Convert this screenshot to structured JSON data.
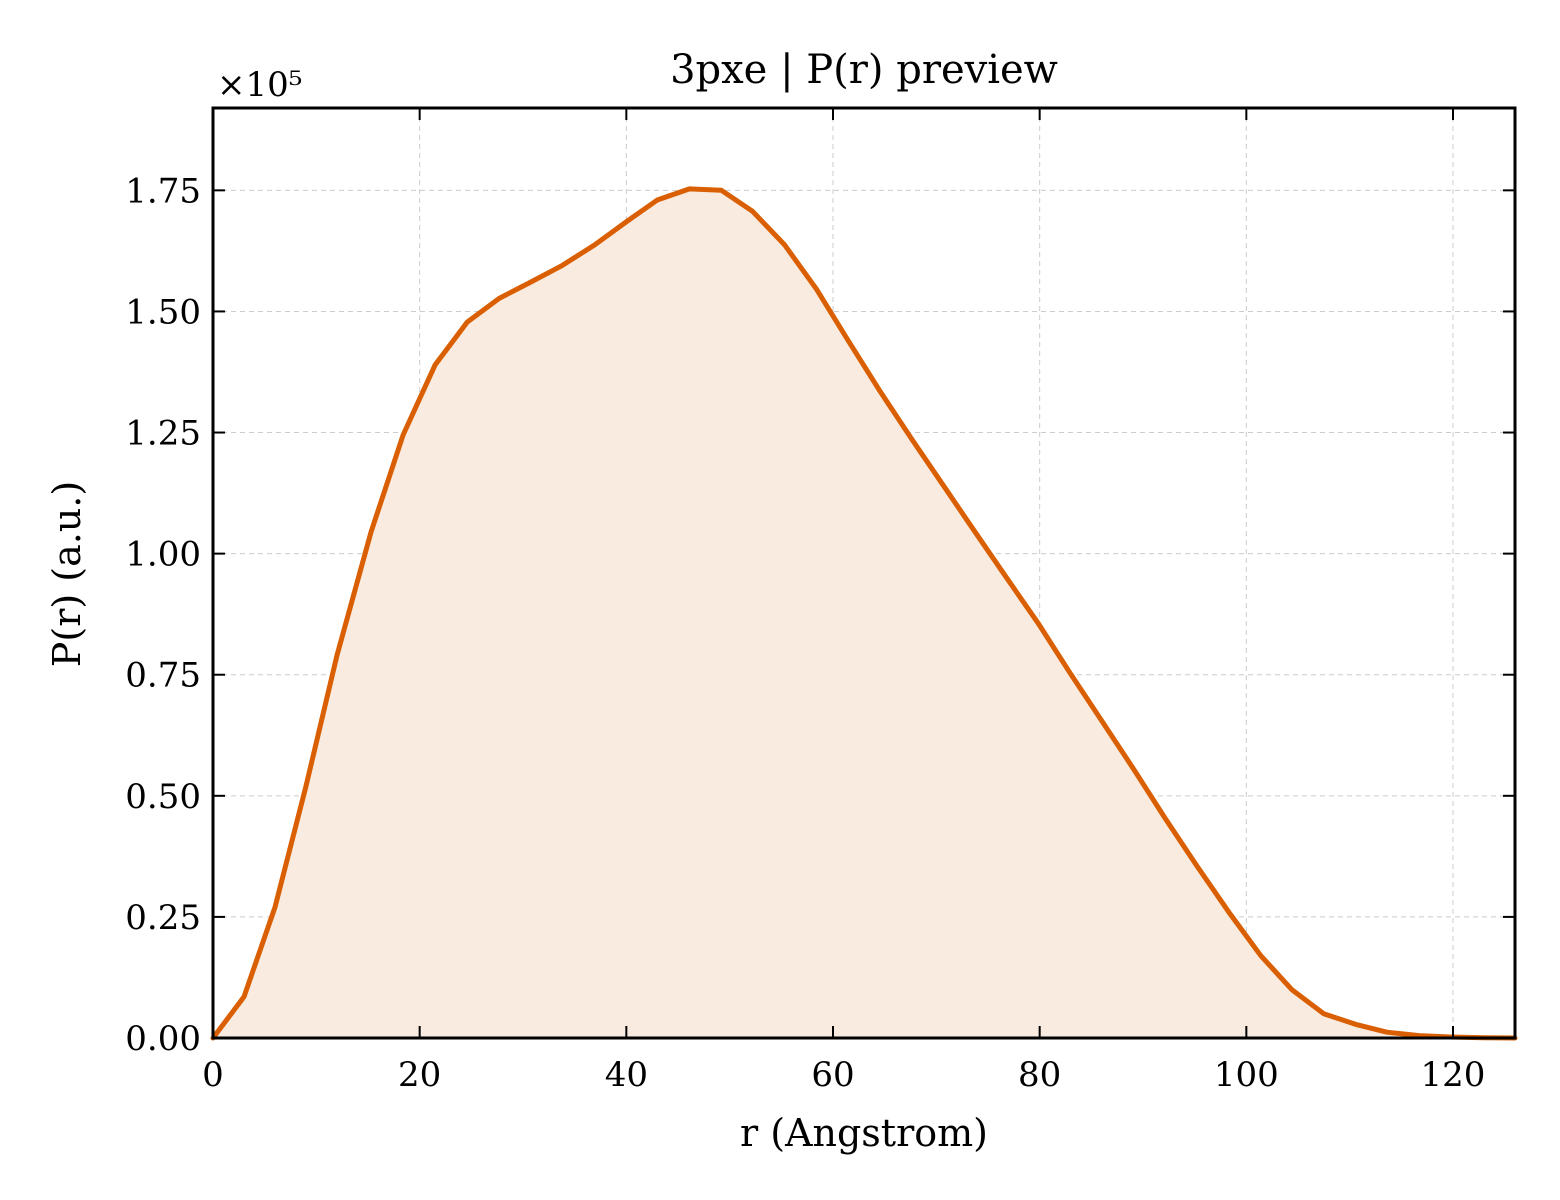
{
  "chart_data": {
    "type": "area",
    "title": "3pxe | P(r) preview",
    "xlabel": "r (Angstrom)",
    "ylabel": "P(r) (a.u.)",
    "y_multiplier_label": "×10⁵",
    "xlim": [
      0,
      126
    ],
    "ylim": [
      0,
      1.92
    ],
    "x_ticks": [
      0,
      20,
      40,
      60,
      80,
      100,
      120
    ],
    "x_tick_labels": [
      "0",
      "20",
      "40",
      "60",
      "80",
      "100",
      "120"
    ],
    "y_ticks": [
      0,
      0.25,
      0.5,
      0.75,
      1.0,
      1.25,
      1.5,
      1.75
    ],
    "y_tick_labels": [
      "0.00",
      "0.25",
      "0.50",
      "0.75",
      "1.00",
      "1.25",
      "1.50",
      "1.75"
    ],
    "grid": true,
    "line_color": "#d95f02",
    "fill_color": "#f9ebe0",
    "series": [
      {
        "x": [
          0,
          3,
          6,
          9,
          12,
          15.3,
          18.4,
          21.5,
          24.6,
          27.7,
          30.7,
          33.8,
          36.9,
          40.0,
          43.0,
          46.1,
          49.2,
          52.2,
          55.3,
          58.4,
          61.4,
          64.5,
          67.6,
          70.7,
          73.7,
          76.8,
          79.9,
          82.9,
          86.0,
          89.1,
          92.1,
          95.2,
          98.3,
          101.4,
          104.4,
          107.5,
          110.6,
          113.6,
          116.7,
          119.8,
          122.9,
          126.0
        ],
        "y": [
          0,
          0.085,
          0.27,
          0.52,
          0.79,
          1.045,
          1.245,
          1.39,
          1.478,
          1.527,
          1.56,
          1.595,
          1.637,
          1.685,
          1.73,
          1.753,
          1.75,
          1.707,
          1.638,
          1.546,
          1.442,
          1.337,
          1.237,
          1.14,
          1.046,
          0.95,
          0.855,
          0.755,
          0.655,
          0.555,
          0.455,
          0.356,
          0.26,
          0.17,
          0.1,
          0.05,
          0.028,
          0.012,
          0.005,
          0.002,
          0.0005,
          0
        ]
      }
    ]
  }
}
